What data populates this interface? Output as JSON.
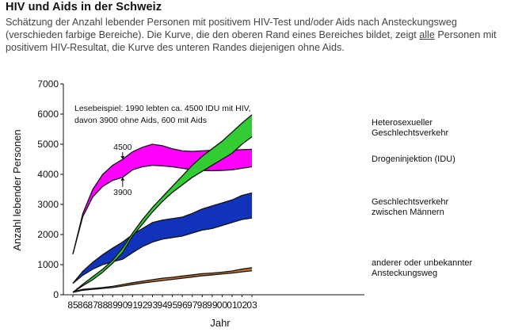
{
  "header": {
    "title": "HIV und Aids in der Schweiz",
    "subtitle_part1": "Schätzung der Anzahl lebender Personen mit positivem HIV-Test und/oder Aids nach Ansteckungsweg (verschieden farbige Bereiche). Die Kurve, die den oberen Rand eines Bereiches bildet, zeigt ",
    "subtitle_underlined": "alle",
    "subtitle_part2": " Personen mit positivem HIV-Resultat, die Kurve des unteren Randes diejenigen ohne Aids."
  },
  "chart_data": {
    "type": "area",
    "title": "HIV und Aids in der Schweiz",
    "xlabel": "Jahr",
    "ylabel": "Anzahl lebender Personen",
    "ylim": [
      0,
      7000
    ],
    "yticks": [
      "0",
      "1000",
      "2000",
      "3000",
      "4000",
      "5000",
      "6000",
      "7000"
    ],
    "categories": [
      "85",
      "86",
      "87",
      "88",
      "89",
      "90",
      "91",
      "92",
      "93",
      "94",
      "95",
      "96",
      "97",
      "98",
      "99",
      "00",
      "01",
      "02",
      "03"
    ],
    "grid": false,
    "series": [
      {
        "name": "Drogeninjektion (IDU)",
        "color": "#ff00ff",
        "upper": [
          1350,
          2700,
          3500,
          4000,
          4300,
          4500,
          4750,
          4900,
          5000,
          4950,
          4850,
          4780,
          4760,
          4780,
          4800,
          4800,
          4800,
          4820,
          4830
        ],
        "lower": [
          1350,
          2600,
          3250,
          3600,
          3800,
          3900,
          4150,
          4250,
          4300,
          4280,
          4250,
          4200,
          4150,
          4130,
          4120,
          4130,
          4150,
          4200,
          4250
        ]
      },
      {
        "name": "Heterosexueller Geschlechtsverkehr",
        "color": "#33cc33",
        "upper": [
          80,
          350,
          600,
          850,
          1150,
          1550,
          2050,
          2500,
          2900,
          3250,
          3600,
          3950,
          4300,
          4600,
          4850,
          5100,
          5400,
          5700,
          5980
        ],
        "lower": [
          80,
          300,
          500,
          750,
          1050,
          1400,
          1950,
          2350,
          2750,
          3100,
          3400,
          3650,
          3900,
          4100,
          4300,
          4500,
          4700,
          5000,
          5250
        ]
      },
      {
        "name": "Geschlechtsverkehr zwischen Männern",
        "color": "#1133bb",
        "upper": [
          380,
          780,
          1080,
          1330,
          1550,
          1750,
          2000,
          2200,
          2400,
          2480,
          2530,
          2580,
          2700,
          2850,
          2950,
          3050,
          3150,
          3300,
          3380
        ],
        "lower": [
          380,
          650,
          850,
          1000,
          1100,
          1180,
          1400,
          1600,
          1750,
          1850,
          1900,
          1950,
          2050,
          2150,
          2200,
          2300,
          2400,
          2500,
          2550
        ]
      },
      {
        "name": "anderer oder unbekannter Ansteckungsweg",
        "color": "#cc7a2a",
        "upper": [
          100,
          180,
          210,
          240,
          280,
          340,
          400,
          450,
          500,
          550,
          580,
          620,
          660,
          700,
          720,
          750,
          790,
          850,
          900
        ],
        "lower": [
          80,
          150,
          180,
          210,
          240,
          290,
          340,
          390,
          430,
          470,
          510,
          550,
          590,
          630,
          660,
          690,
          720,
          760,
          800
        ]
      }
    ],
    "annotations": [
      {
        "text": "Lesebeispiel: 1990 lebten ca. 4500 IDU mit HIV,"
      },
      {
        "text": "davon 3900 ohne Aids, 600 mit Aids"
      },
      {
        "text": "4500",
        "x": "90",
        "y": 4500
      },
      {
        "text": "3900",
        "x": "90",
        "y": 3900
      }
    ],
    "legend": [
      {
        "line1": "Heterosexueller",
        "line2": "Geschlechtsverkehr"
      },
      {
        "line1": "Drogeninjektion (IDU)",
        "line2": ""
      },
      {
        "line1": "Geschlechtsverkehr",
        "line2": "zwischen Männern"
      },
      {
        "line1": "anderer oder unbekannter",
        "line2": "Ansteckungsweg"
      }
    ]
  }
}
